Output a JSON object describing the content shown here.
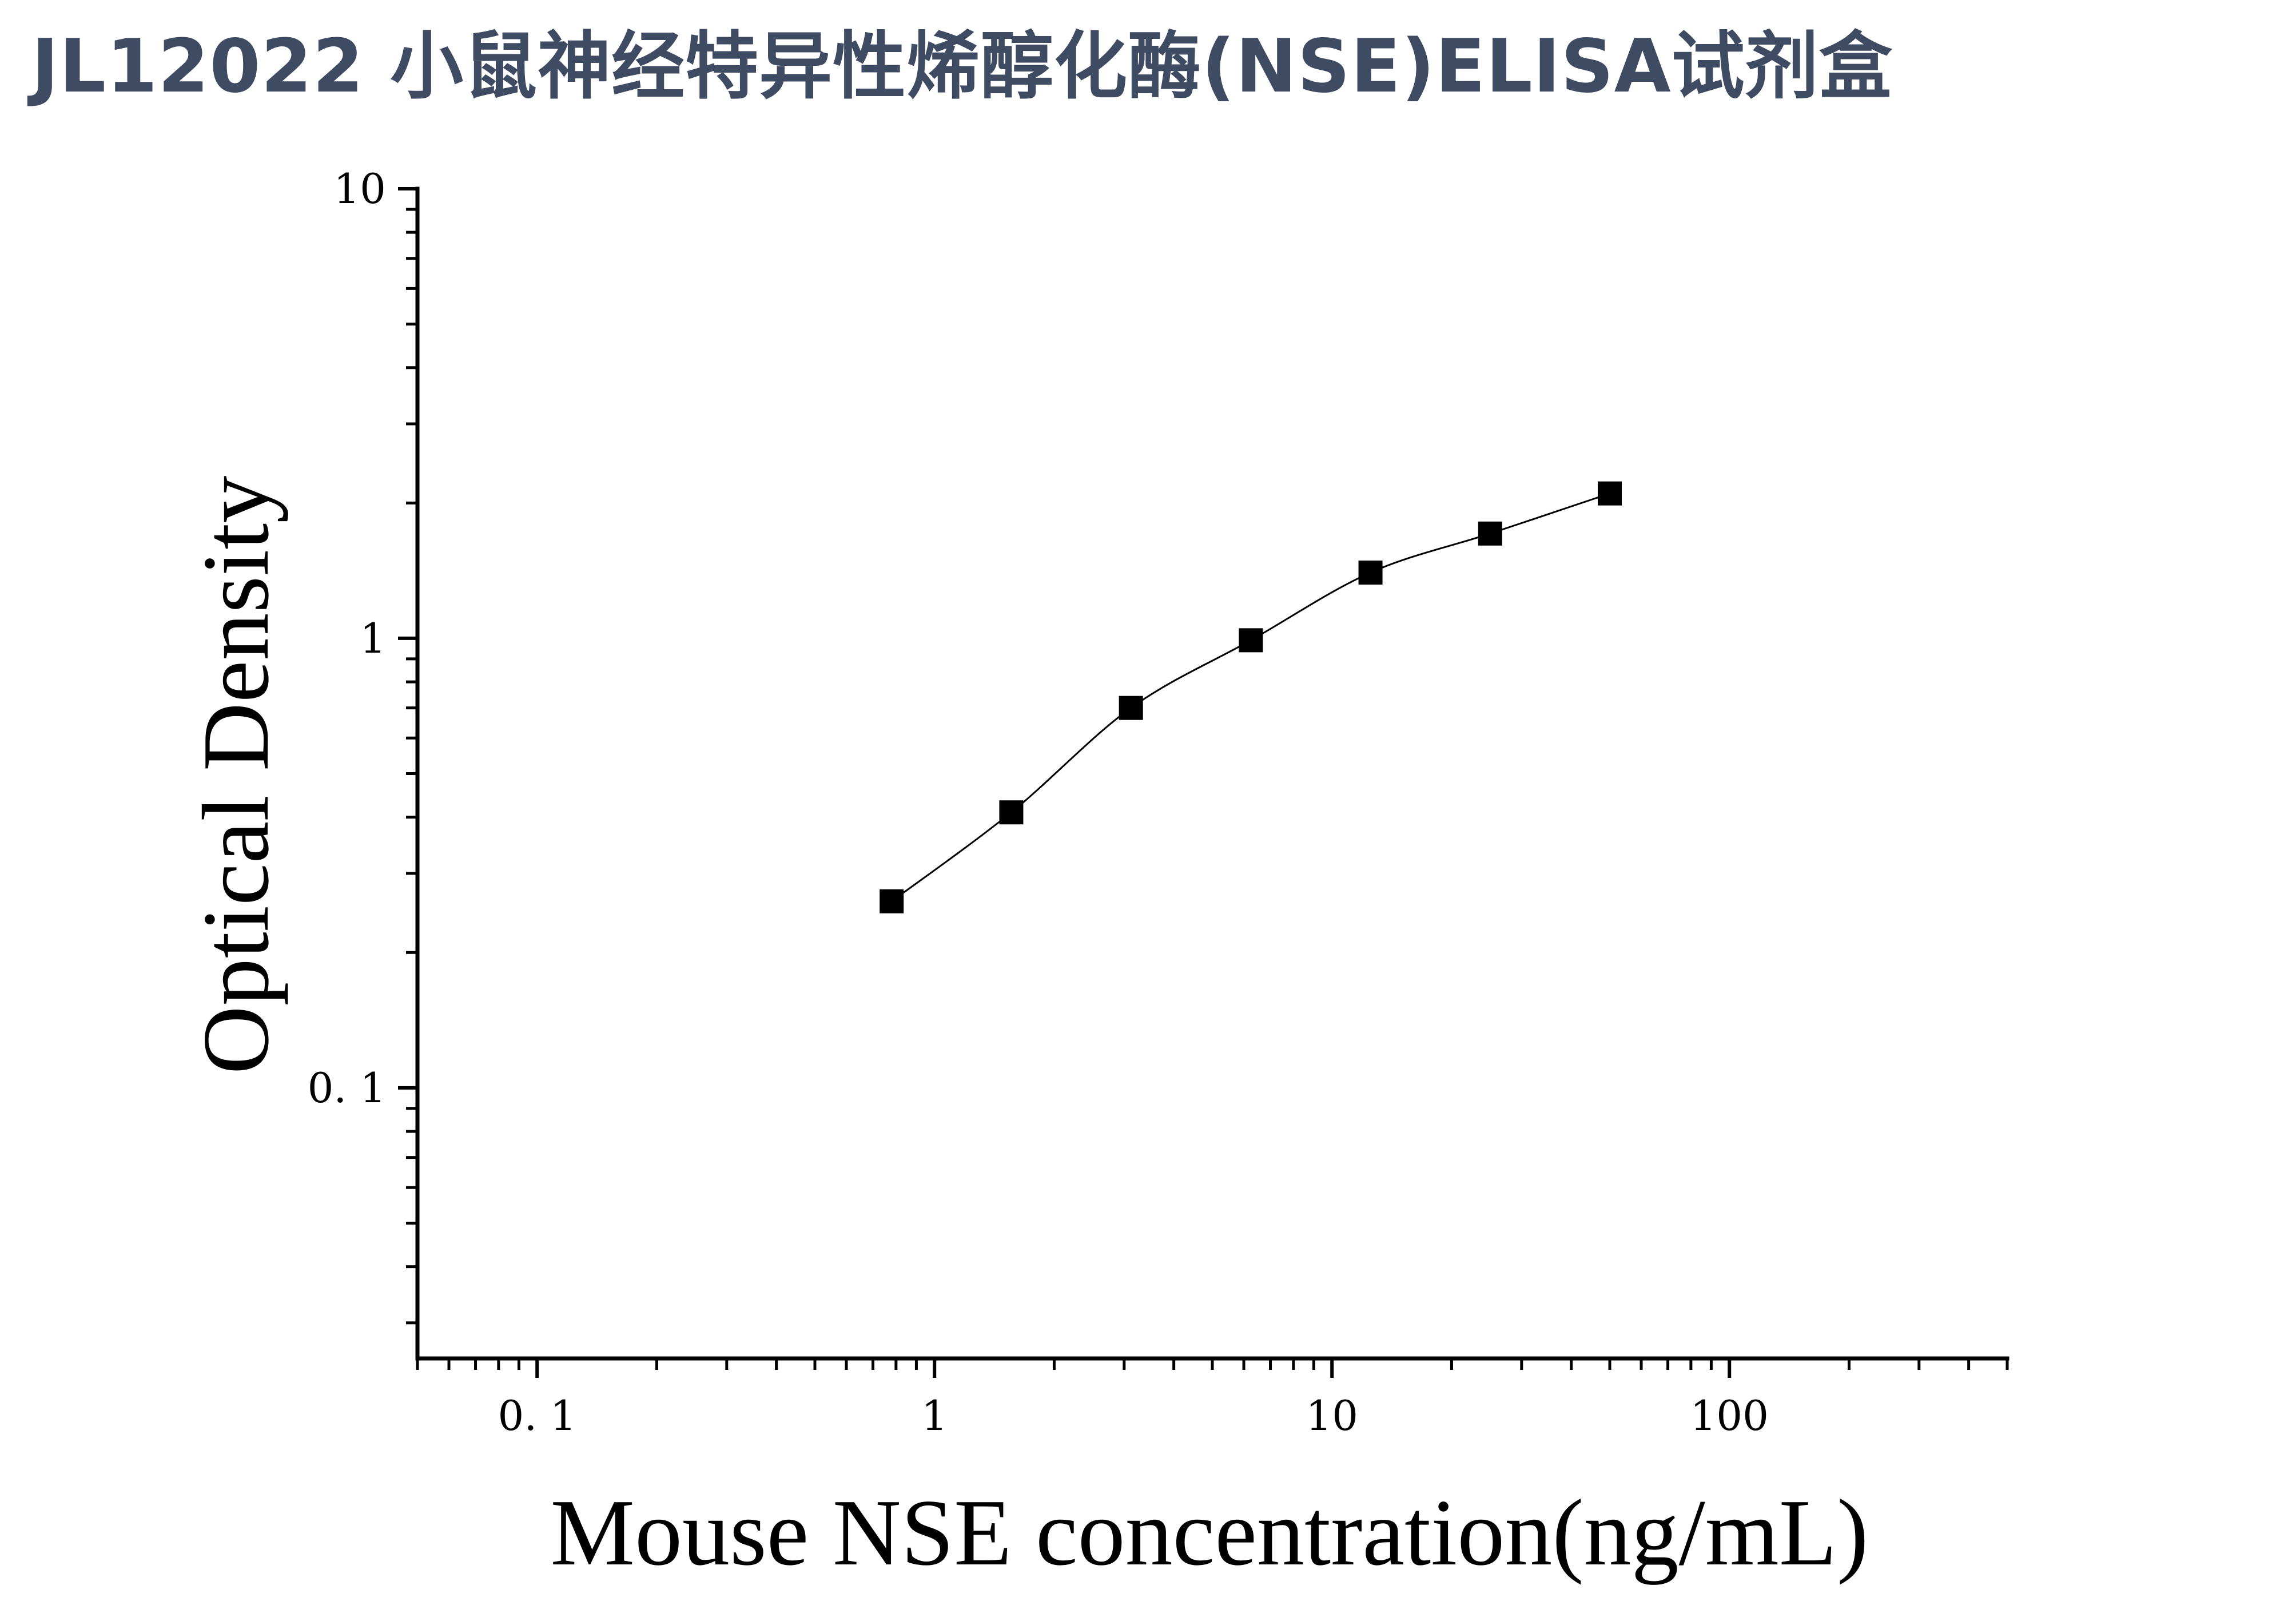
{
  "title": "JL12022 小鼠神经特异性烯醇化酶(NSE)ELISA试剂盒",
  "chart_data": {
    "type": "scatter",
    "title": "JL12022 小鼠神经特异性烯醇化酶(NSE)ELISA试剂盒",
    "xlabel": "Mouse NSE concentration(ng/mL)",
    "ylabel": "Optical Density",
    "x_scale": "log",
    "y_scale": "log",
    "xlim": [
      0.05,
      500
    ],
    "ylim": [
      0.025,
      10
    ],
    "x_ticks": [
      0.1,
      1,
      10,
      100
    ],
    "x_tick_labels": [
      "0. 1",
      "1",
      "10",
      "100"
    ],
    "y_ticks": [
      0.1,
      1,
      10
    ],
    "y_tick_labels": [
      "0. 1",
      "1",
      "10"
    ],
    "grid": false,
    "legend": "none",
    "series": [
      {
        "marker": "square",
        "color": "#000000",
        "fit_line": true,
        "points": [
          {
            "x": 0.78,
            "y": 0.26
          },
          {
            "x": 1.56,
            "y": 0.41
          },
          {
            "x": 3.12,
            "y": 0.7
          },
          {
            "x": 6.25,
            "y": 0.99
          },
          {
            "x": 12.5,
            "y": 1.4
          },
          {
            "x": 25,
            "y": 1.71
          },
          {
            "x": 50,
            "y": 2.1
          }
        ]
      }
    ]
  }
}
